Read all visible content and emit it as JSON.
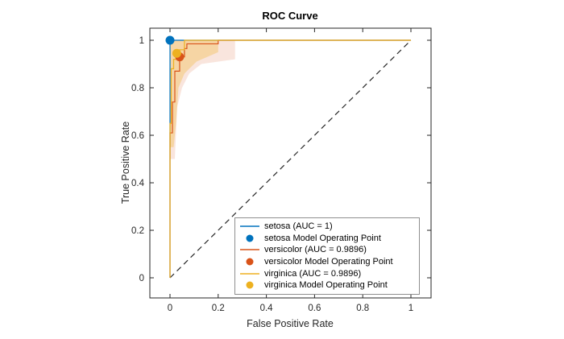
{
  "chart_data": {
    "type": "line",
    "title": "ROC Curve",
    "xlabel": "False Positive Rate",
    "ylabel": "True Positive Rate",
    "xlim": [
      0,
      1
    ],
    "ylim": [
      0,
      1
    ],
    "xticks": [
      0,
      0.2,
      0.4,
      0.6,
      0.8,
      1
    ],
    "yticks": [
      0,
      0.2,
      0.4,
      0.6,
      0.8,
      1
    ],
    "xtick_labels": [
      "0",
      "0.2",
      "0.4",
      "0.6",
      "0.8",
      "1"
    ],
    "ytick_labels": [
      "0",
      "0.2",
      "0.4",
      "0.6",
      "0.8",
      "1"
    ],
    "grid": false,
    "axis_color": "#262626",
    "legend_position": "bottom-right-inside",
    "reference_line": {
      "name": "chance-diagonal",
      "color": "#262626",
      "dashed": true,
      "points": [
        [
          0,
          0
        ],
        [
          1,
          1
        ]
      ]
    },
    "series": [
      {
        "name": "setosa (AUC = 1)",
        "auc": 1,
        "color": "#0072BD",
        "points": [
          [
            0,
            0
          ],
          [
            0,
            1
          ],
          [
            1,
            1
          ]
        ]
      },
      {
        "name": "versicolor (AUC = 0.9896)",
        "auc": 0.9896,
        "color": "#D95319",
        "band_opacity": 0.15,
        "band": [
          [
            0,
            0.5
          ],
          [
            0,
            1
          ],
          [
            0.27,
            1
          ],
          [
            0.27,
            0.92
          ],
          [
            0.13,
            0.9
          ],
          [
            0.08,
            0.86
          ],
          [
            0.05,
            0.8
          ],
          [
            0.03,
            0.72
          ],
          [
            0.02,
            0.5
          ]
        ],
        "points": [
          [
            0,
            0
          ],
          [
            0,
            0.61
          ],
          [
            0.01,
            0.61
          ],
          [
            0.01,
            0.74
          ],
          [
            0.02,
            0.74
          ],
          [
            0.02,
            0.87
          ],
          [
            0.04,
            0.87
          ],
          [
            0.04,
            0.93
          ],
          [
            0.06,
            0.93
          ],
          [
            0.06,
            0.965
          ],
          [
            0.07,
            0.965
          ],
          [
            0.07,
            0.985
          ],
          [
            0.2,
            0.985
          ],
          [
            0.2,
            1
          ],
          [
            1,
            1
          ]
        ]
      },
      {
        "name": "virginica (AUC = 0.9896)",
        "auc": 0.9896,
        "color": "#EDB120",
        "band_opacity": 0.3,
        "band": [
          [
            0,
            0.55
          ],
          [
            0,
            1
          ],
          [
            0.2,
            1
          ],
          [
            0.2,
            0.95
          ],
          [
            0.11,
            0.91
          ],
          [
            0.06,
            0.86
          ],
          [
            0.035,
            0.8
          ],
          [
            0.025,
            0.65
          ],
          [
            0.015,
            0.55
          ]
        ],
        "points": [
          [
            0,
            0
          ],
          [
            0,
            0.65
          ],
          [
            0.005,
            0.65
          ],
          [
            0.005,
            0.88
          ],
          [
            0.015,
            0.88
          ],
          [
            0.015,
            0.92
          ],
          [
            0.03,
            0.92
          ],
          [
            0.03,
            0.94
          ],
          [
            0.04,
            0.94
          ],
          [
            0.04,
            0.96
          ],
          [
            0.06,
            0.96
          ],
          [
            0.06,
            1
          ],
          [
            1,
            1
          ]
        ]
      }
    ],
    "operating_points": [
      {
        "name": "setosa Model Operating Point",
        "color": "#0072BD",
        "point": [
          0,
          1
        ]
      },
      {
        "name": "versicolor Model Operating Point",
        "color": "#D95319",
        "point": [
          0.04,
          0.93
        ]
      },
      {
        "name": "virginica Model Operating Point",
        "color": "#EDB120",
        "point": [
          0.028,
          0.945
        ]
      }
    ],
    "legend_items": [
      {
        "label": "setosa (AUC = 1)",
        "marker": "line",
        "color": "#0072BD"
      },
      {
        "label": "setosa Model Operating Point",
        "marker": "dot",
        "color": "#0072BD"
      },
      {
        "label": "versicolor (AUC = 0.9896)",
        "marker": "line",
        "color": "#D95319"
      },
      {
        "label": "versicolor Model Operating Point",
        "marker": "dot",
        "color": "#D95319"
      },
      {
        "label": "virginica (AUC = 0.9896)",
        "marker": "line",
        "color": "#EDB120"
      },
      {
        "label": "virginica Model Operating Point",
        "marker": "dot",
        "color": "#EDB120"
      }
    ]
  }
}
